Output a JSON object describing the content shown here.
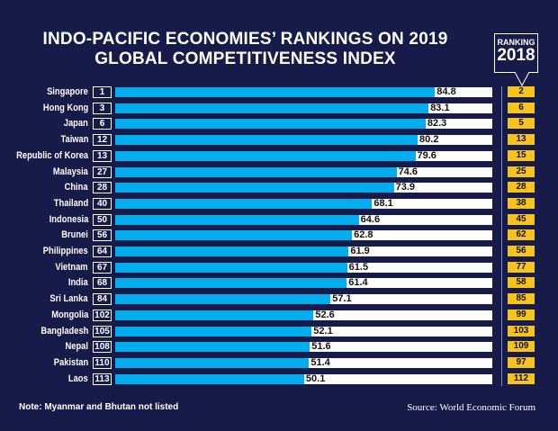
{
  "title_line1": "INDO-PACIFIC ECONOMIES’ RANKINGS ON 2019",
  "title_line2": "GLOBAL COMPETITIVENESS INDEX",
  "badge": {
    "label": "RANKING",
    "year": "2018"
  },
  "note": "Note: Myanmar and Bhutan not listed",
  "source": "Source: World Economic Forum",
  "colors": {
    "background": "#161b4a",
    "bar": "#00aeef",
    "track": "#ffffff",
    "rank_2018": "#f7c41f"
  },
  "chart_data": {
    "type": "bar",
    "orientation": "horizontal",
    "xlim": [
      0,
      100
    ],
    "categories": [
      "Singapore",
      "Hong Kong",
      "Japan",
      "Taiwan",
      "Republic of Korea",
      "Malaysia",
      "China",
      "Thailand",
      "Indonesia",
      "Brunei",
      "Philippines",
      "Vietnam",
      "India",
      "Sri Lanka",
      "Mongolia",
      "Bangladesh",
      "Nepal",
      "Pakistan",
      "Laos"
    ],
    "rank_2019": [
      "1",
      "3",
      "6",
      "12",
      "13",
      "27",
      "28",
      "40",
      "50",
      "56",
      "64",
      "67",
      "68",
      "84",
      "102",
      "105",
      "108",
      "110",
      "113"
    ],
    "values": [
      84.8,
      83.1,
      82.3,
      80.2,
      79.6,
      74.6,
      73.9,
      68.1,
      64.6,
      62.8,
      61.9,
      61.5,
      61.4,
      57.1,
      52.6,
      52.1,
      51.6,
      51.4,
      50.1
    ],
    "value_labels": [
      "84.8",
      "83.1",
      "82.3",
      "80.2",
      "79.6",
      "74.6",
      "73.9",
      "68.1",
      "64.6",
      "62.8",
      "61.9",
      "61.5",
      "61.4",
      "57.1",
      "52.6",
      "52.1",
      "51.6",
      "51.4",
      "50.1"
    ],
    "rank_2018": [
      "2",
      "6",
      "5",
      "13",
      "15",
      "25",
      "28",
      "38",
      "45",
      "62",
      "56",
      "77",
      "58",
      "85",
      "99",
      "103",
      "109",
      "97",
      "112"
    ]
  }
}
